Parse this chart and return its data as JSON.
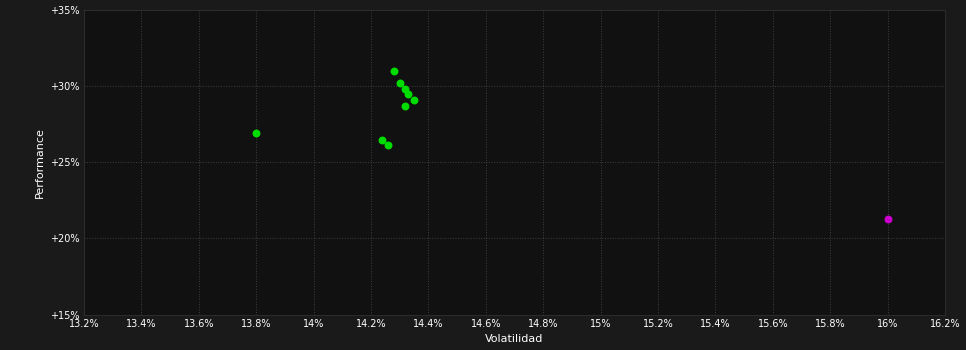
{
  "background_color": "#1a1a1a",
  "plot_bg_color": "#111111",
  "grid_color": "#444444",
  "grid_style": ":",
  "title": "",
  "xlabel": "Volatilidad",
  "ylabel": "Performance",
  "xlim": [
    0.132,
    0.162
  ],
  "ylim": [
    0.15,
    0.35
  ],
  "xticks": [
    0.132,
    0.134,
    0.136,
    0.138,
    0.14,
    0.142,
    0.144,
    0.146,
    0.148,
    0.15,
    0.152,
    0.154,
    0.156,
    0.158,
    0.16,
    0.162
  ],
  "yticks": [
    0.15,
    0.2,
    0.25,
    0.3,
    0.35
  ],
  "ytick_labels": [
    "+15%",
    "+20%",
    "+25%",
    "+30%",
    "+35%"
  ],
  "xtick_labels": [
    "13.2%",
    "13.4%",
    "13.6%",
    "13.8%",
    "14%",
    "14.2%",
    "14.4%",
    "14.6%",
    "14.8%",
    "15%",
    "15.2%",
    "15.4%",
    "15.6%",
    "15.8%",
    "16%",
    "16.2%"
  ],
  "green_points": [
    [
      0.1428,
      0.3095
    ],
    [
      0.143,
      0.302
    ],
    [
      0.1432,
      0.298
    ],
    [
      0.1433,
      0.2945
    ],
    [
      0.1435,
      0.2905
    ],
    [
      0.1432,
      0.287
    ],
    [
      0.138,
      0.269
    ],
    [
      0.1424,
      0.2645
    ],
    [
      0.1426,
      0.2615
    ]
  ],
  "magenta_points": [
    [
      0.16,
      0.213
    ]
  ],
  "green_color": "#00dd00",
  "magenta_color": "#cc00cc",
  "point_size": 22,
  "magenta_size": 22
}
